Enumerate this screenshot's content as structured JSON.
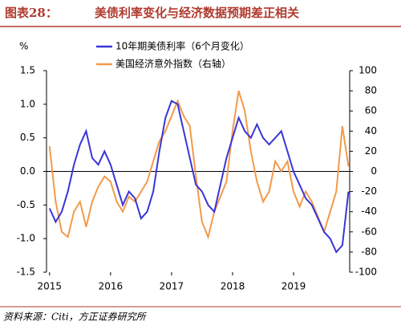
{
  "chart_data": {
    "type": "line",
    "figure_label": "图表28：",
    "title": "美债利率变化与经济数据预期差正相关",
    "y_label": "%",
    "source": "资料来源：Citi，方正证券研究所",
    "x": [
      2015.0,
      2015.1,
      2015.2,
      2015.3,
      2015.4,
      2015.5,
      2015.6,
      2015.7,
      2015.8,
      2015.9,
      2016.0,
      2016.1,
      2016.2,
      2016.3,
      2016.4,
      2016.5,
      2016.6,
      2016.7,
      2016.8,
      2016.9,
      2017.0,
      2017.1,
      2017.2,
      2017.3,
      2017.4,
      2017.5,
      2017.6,
      2017.7,
      2017.8,
      2017.9,
      2018.0,
      2018.1,
      2018.2,
      2018.3,
      2018.4,
      2018.5,
      2018.6,
      2018.7,
      2018.8,
      2018.9,
      2019.0,
      2019.1,
      2019.2,
      2019.3,
      2019.4,
      2019.5,
      2019.6,
      2019.7,
      2019.8,
      2019.9
    ],
    "series": [
      {
        "name": "10年期美债利率（6个月变化）",
        "color": "#3a35d8",
        "values": [
          -0.55,
          -0.75,
          -0.6,
          -0.3,
          0.1,
          0.4,
          0.6,
          0.2,
          0.1,
          0.3,
          0.1,
          -0.2,
          -0.5,
          -0.3,
          -0.4,
          -0.7,
          -0.6,
          -0.3,
          0.3,
          0.8,
          1.05,
          1.0,
          0.6,
          0.2,
          -0.2,
          -0.3,
          -0.5,
          -0.6,
          -0.2,
          0.2,
          0.5,
          0.8,
          0.6,
          0.5,
          0.7,
          0.5,
          0.4,
          0.5,
          0.6,
          0.3,
          0.0,
          -0.2,
          -0.4,
          -0.5,
          -0.7,
          -0.9,
          -1.0,
          -1.2,
          -1.1,
          -0.3
        ]
      },
      {
        "name": "美国经济意外指数（右轴）",
        "color": "#f39a4a",
        "axis": "y2",
        "values": [
          25,
          -30,
          -60,
          -65,
          -40,
          -30,
          -55,
          -30,
          -15,
          -5,
          -10,
          -30,
          -40,
          -25,
          -30,
          -20,
          -10,
          10,
          30,
          40,
          55,
          70,
          55,
          45,
          -5,
          -50,
          -65,
          -40,
          -25,
          -10,
          40,
          80,
          60,
          20,
          -10,
          -30,
          -20,
          10,
          0,
          10,
          -20,
          -35,
          -20,
          -30,
          -45,
          -60,
          -40,
          -20,
          45,
          5
        ]
      }
    ],
    "xlim": [
      2014.95,
      2019.92
    ],
    "xticks": [
      2015,
      2016,
      2017,
      2018,
      2019
    ],
    "ylim": [
      -1.5,
      1.5
    ],
    "yticks": [
      -1.5,
      {
        "value": -1.0,
        "label": "-1.0"
      },
      -0.5,
      {
        "value": 0.0,
        "label": "0.0"
      },
      0.5,
      {
        "value": 1.0,
        "label": "1.0"
      },
      1.5
    ],
    "y2lim": [
      -100,
      100
    ],
    "y2ticks": [
      -100,
      -80,
      -60,
      -40,
      -20,
      0,
      20,
      40,
      60,
      80,
      100
    ]
  }
}
